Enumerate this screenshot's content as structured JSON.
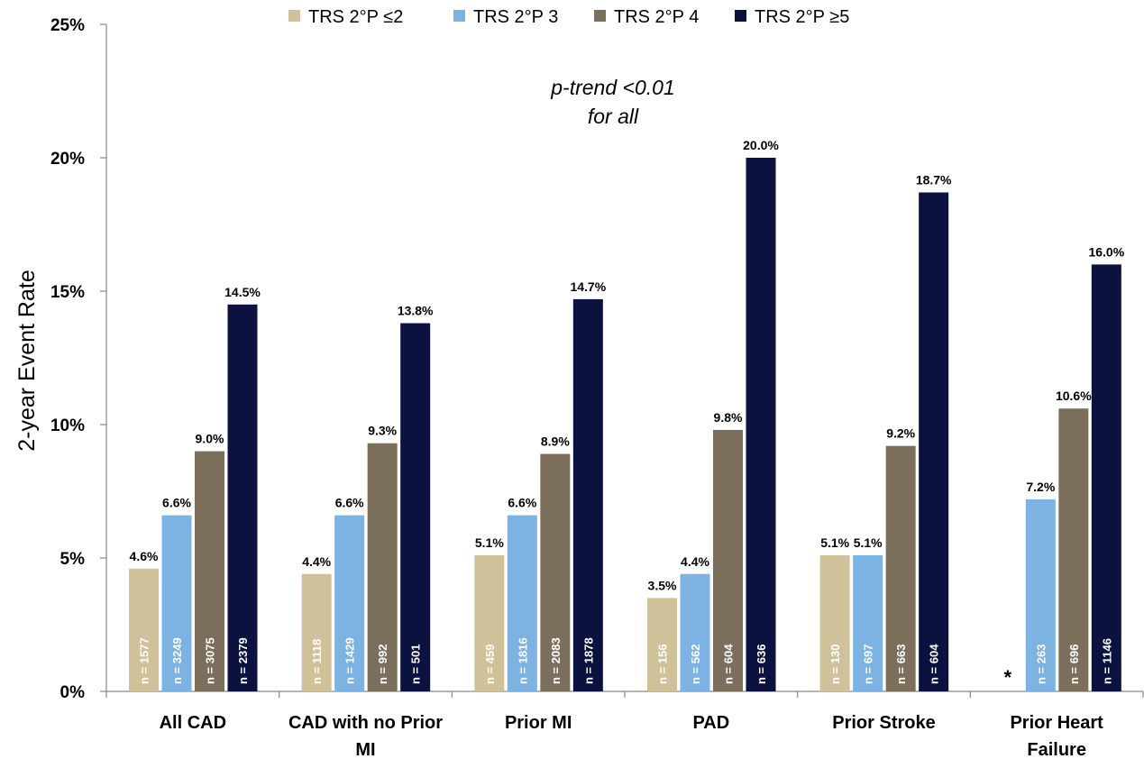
{
  "chart_data": {
    "type": "bar",
    "ylabel": "2-year Event Rate",
    "ylim": [
      0,
      25
    ],
    "yticks": [
      "0%",
      "5%",
      "10%",
      "15%",
      "20%",
      "25%"
    ],
    "categories": [
      [
        "All CAD"
      ],
      [
        "CAD with no Prior",
        "MI"
      ],
      [
        "Prior MI"
      ],
      [
        "PAD"
      ],
      [
        "Prior Stroke"
      ],
      [
        "Prior Heart",
        "Failure"
      ]
    ],
    "series": [
      {
        "name": "TRS 2°P  ≤2",
        "color": "#cfc19a",
        "values": [
          4.6,
          4.4,
          5.1,
          3.5,
          5.1,
          null
        ],
        "labels": [
          "4.6%",
          "4.4%",
          "5.1%",
          "3.5%",
          "5.1%",
          ""
        ],
        "n": [
          "n = 1577",
          "n = 1118",
          "n = 459",
          "n = 156",
          "n = 130",
          ""
        ]
      },
      {
        "name": "TRS 2°P  3",
        "color": "#7db3e3",
        "values": [
          6.6,
          6.6,
          6.6,
          4.4,
          5.1,
          7.2
        ],
        "labels": [
          "6.6%",
          "6.6%",
          "6.6%",
          "4.4%",
          "5.1%",
          "7.2%"
        ],
        "n": [
          "n = 3249",
          "n = 1429",
          "n = 1816",
          "n = 562",
          "n = 697",
          "n = 263"
        ]
      },
      {
        "name": "TRS 2°P  4",
        "color": "#7b6f5b",
        "values": [
          9.0,
          9.3,
          8.9,
          9.8,
          9.2,
          10.6
        ],
        "labels": [
          "9.0%",
          "9.3%",
          "8.9%",
          "9.8%",
          "9.2%",
          "10.6%"
        ],
        "n": [
          "n = 3075",
          "n = 992",
          "n = 2083",
          "n = 604",
          "n = 663",
          "n = 696"
        ]
      },
      {
        "name": "TRS 2°P  ≥5",
        "color": "#0b1240",
        "values": [
          14.5,
          13.8,
          14.7,
          20.0,
          18.7,
          16.0
        ],
        "labels": [
          "14.5%",
          "13.8%",
          "14.7%",
          "20.0%",
          "18.7%",
          "16.0%"
        ],
        "n": [
          "n = 2379",
          "n = 501",
          "n = 1878",
          "n = 636",
          "n = 604",
          "n = 1146"
        ]
      }
    ],
    "annotations": {
      "trend_line1": "p-trend <0.01",
      "trend_line2": "for all",
      "missing_marker": "*"
    },
    "legend_position": "top",
    "grid": false
  }
}
